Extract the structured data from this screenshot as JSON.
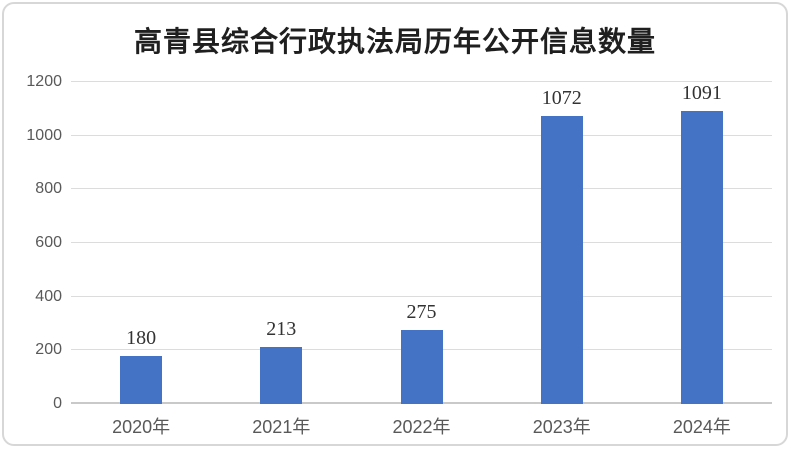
{
  "frame": {
    "background": "#ffffff",
    "border_color": "#d7d7d7"
  },
  "chart_data": {
    "type": "bar",
    "title": "高青县综合行政执法局历年公开信息数量",
    "categories": [
      "2020年",
      "2021年",
      "2022年",
      "2023年",
      "2024年"
    ],
    "values": [
      180,
      213,
      275,
      1072,
      1091
    ],
    "data_labels": [
      "180",
      "213",
      "275",
      "1072",
      "1091"
    ],
    "xlabel": "",
    "ylabel": "",
    "ylim": [
      0,
      1200
    ],
    "yticks": [
      0,
      200,
      400,
      600,
      800,
      1000,
      1200
    ],
    "grid": true,
    "legend": "none",
    "bar_color": "#4472C4",
    "gridline_color": "#dcdcdc",
    "axis_line_color": "#c9c9c9",
    "tick_label_color": "#595959",
    "data_label_color": "#333333",
    "title_color": "#1f1f1f"
  }
}
